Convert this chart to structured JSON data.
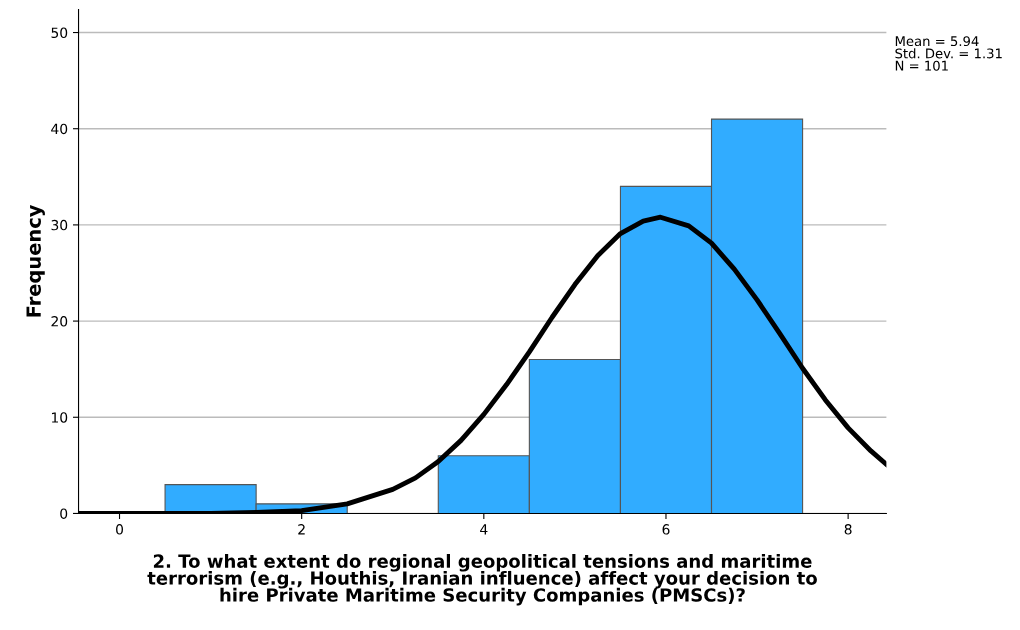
{
  "chart_data": {
    "type": "histogram",
    "xlabel": "2. To what extent do regional geopolitical tensions and maritime\nterrorism (e.g., Houthis, Iranian influence) affect your decision to\nhire Private Maritime Security Companies (PMSCs)?",
    "ylabel": "Frequency",
    "bins": [
      0.5,
      1.5,
      2.5,
      3.5,
      4.5,
      5.5,
      6.5,
      7.5
    ],
    "values": [
      3,
      1,
      0,
      6,
      16,
      34,
      41
    ],
    "color": "#31acff",
    "series": [
      {
        "type": "line",
        "color": "#000000",
        "x": [
          -0.45,
          0,
          1,
          1.5,
          2,
          2.5,
          3,
          3.25,
          3.5,
          3.75,
          4,
          4.25,
          4.5,
          4.75,
          5,
          5.25,
          5.5,
          5.75,
          5.94,
          6.25,
          6.5,
          6.75,
          7,
          7.25,
          7.5,
          7.75,
          8,
          8.25,
          8.42
        ],
        "values": [
          0,
          0,
          0,
          0.1,
          0.3,
          1,
          2.5,
          3.7,
          5.4,
          7.6,
          10.3,
          13.4,
          16.8,
          20.4,
          23.8,
          26.8,
          29.1,
          30.4,
          30.8,
          29.9,
          28.1,
          25.4,
          22.2,
          18.7,
          15.1,
          11.8,
          8.9,
          6.5,
          5.1
        ]
      }
    ],
    "xlim": [
      -0.45,
      8.42
    ],
    "xticks": [
      0,
      2,
      4,
      6,
      8
    ],
    "ylim": [
      0,
      52.4
    ],
    "yticks": [
      0,
      10,
      20,
      30,
      40,
      50
    ],
    "grid": "y",
    "legend": false,
    "annotations": [
      "Mean = 5.94\nStd. Dev. = 1.31\nN = 101"
    ]
  }
}
